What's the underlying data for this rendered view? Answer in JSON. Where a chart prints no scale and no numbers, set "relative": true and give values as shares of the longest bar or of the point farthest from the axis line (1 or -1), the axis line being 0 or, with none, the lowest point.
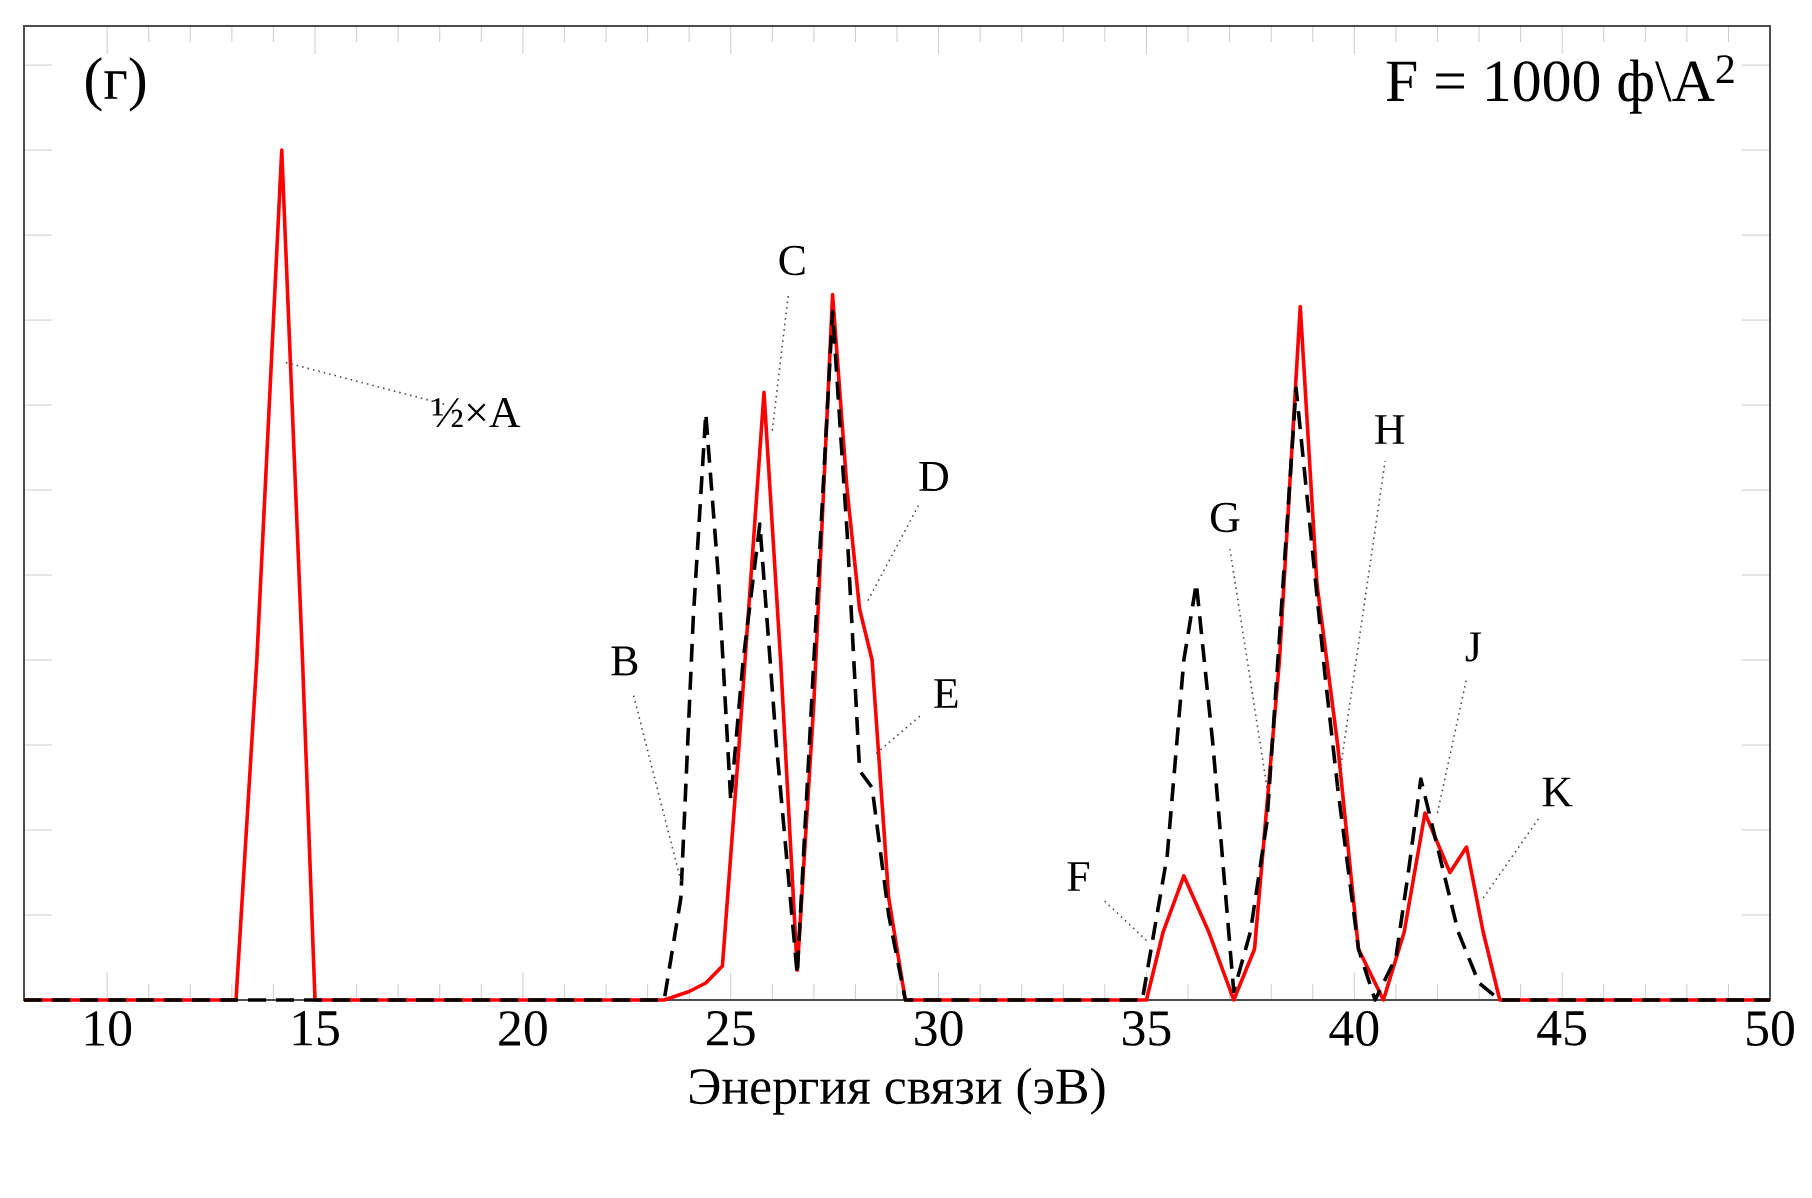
{
  "chart_data": {
    "type": "line",
    "relative": true,
    "xlabel": "Энергия связи (эВ)",
    "xlim": [
      8,
      50
    ],
    "xticks": [
      10,
      15,
      20,
      25,
      30,
      35,
      40,
      45,
      50
    ],
    "series": [
      {
        "color": "#ff0000",
        "line_style": "solid",
        "x": [
          8,
          13.1,
          13.6,
          14.2,
          14.7,
          15.0,
          23.4,
          24.0,
          24.4,
          24.8,
          25.2,
          25.8,
          26.2,
          26.6,
          27.0,
          27.45,
          27.8,
          28.1,
          28.4,
          28.8,
          29.2,
          35.0,
          35.4,
          35.9,
          36.5,
          37.1,
          37.6,
          38.2,
          38.7,
          39.1,
          39.6,
          40.1,
          40.7,
          41.2,
          41.7,
          42.3,
          42.7,
          43.1,
          43.5,
          50
        ],
        "values": [
          0,
          0,
          0.4,
          1.0,
          0.4,
          0,
          0,
          0.01,
          0.02,
          0.04,
          0.3,
          0.715,
          0.4,
          0.035,
          0.35,
          0.83,
          0.6,
          0.46,
          0.4,
          0.12,
          0,
          0,
          0.08,
          0.146,
          0.08,
          0,
          0.06,
          0.4,
          0.816,
          0.49,
          0.3,
          0.06,
          0,
          0.08,
          0.22,
          0.15,
          0.18,
          0.08,
          0,
          0
        ]
      },
      {
        "color": "#000000",
        "line_style": "dashed",
        "x": [
          8,
          23.4,
          23.8,
          24.1,
          24.4,
          24.7,
          25.0,
          25.3,
          25.7,
          26.1,
          26.6,
          27.0,
          27.45,
          27.8,
          28.1,
          28.4,
          28.8,
          29.2,
          34.9,
          35.5,
          35.9,
          36.2,
          36.6,
          37.1,
          37.5,
          37.9,
          38.3,
          38.6,
          39.3,
          39.6,
          40.1,
          40.5,
          41.0,
          41.3,
          41.6,
          42.0,
          42.5,
          43.0,
          43.5,
          50
        ],
        "values": [
          0,
          0,
          0.12,
          0.45,
          0.69,
          0.5,
          0.235,
          0.4,
          0.56,
          0.3,
          0.03,
          0.4,
          0.81,
          0.55,
          0.27,
          0.25,
          0.1,
          0,
          0,
          0.17,
          0.4,
          0.49,
          0.3,
          0.01,
          0.08,
          0.21,
          0.5,
          0.72,
          0.38,
          0.25,
          0.06,
          0,
          0.05,
          0.15,
          0.26,
          0.18,
          0.08,
          0.02,
          0,
          0
        ]
      }
    ],
    "annotations": [
      "(г)",
      "F = 1000 ф\\A$^{2}$",
      {
        "text": "½×A",
        "x": 14.3,
        "y": 0.75
      },
      {
        "text": "B",
        "x": 23.8,
        "y": 0.14
      },
      {
        "text": "C",
        "x": 26.0,
        "y": 0.67
      },
      {
        "text": "D",
        "x": 28.3,
        "y": 0.47
      },
      {
        "text": "E",
        "x": 28.5,
        "y": 0.29
      },
      {
        "text": "F",
        "x": 35.0,
        "y": 0.07
      },
      {
        "text": "G",
        "x": 37.9,
        "y": 0.25
      },
      {
        "text": "H",
        "x": 39.6,
        "y": 0.25
      },
      {
        "text": "J",
        "x": 42.0,
        "y": 0.22
      },
      {
        "text": "K",
        "x": 43.1,
        "y": 0.12
      }
    ]
  }
}
